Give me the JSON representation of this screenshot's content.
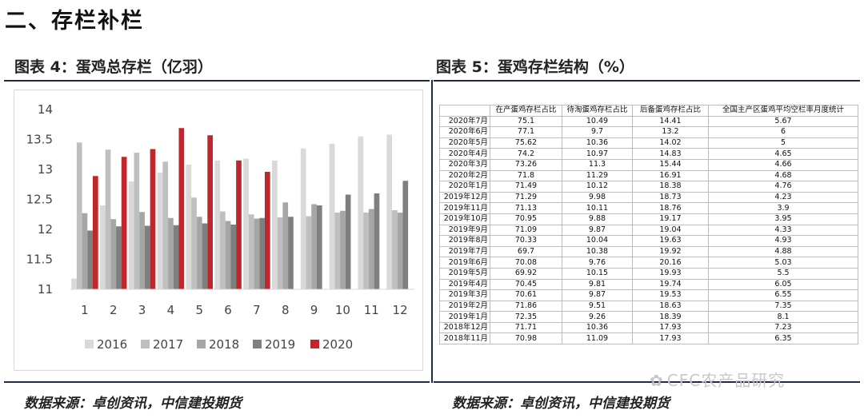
{
  "section_title": "二、存栏补栏",
  "left_figure": {
    "title": "图表 4：蛋鸡总存栏（亿羽）",
    "source": "数据来源：卓创资讯，中信建投期货"
  },
  "right_figure": {
    "title": "图表 5：蛋鸡存栏结构（%）",
    "source": "数据来源：卓创资讯，中信建投期货",
    "watermark": "CFC农产品研究",
    "table": {
      "headers": [
        "",
        "在产蛋鸡存栏占比",
        "待淘蛋鸡存栏占比",
        "后备蛋鸡存栏占比",
        "全国主产区蛋鸡平均空栏率月度统计"
      ],
      "rows": [
        [
          "2020年7月",
          "75.1",
          "10.49",
          "14.41",
          "5.67"
        ],
        [
          "2020年6月",
          "77.1",
          "9.7",
          "13.2",
          "6"
        ],
        [
          "2020年5月",
          "75.62",
          "10.36",
          "14.02",
          "5"
        ],
        [
          "2020年4月",
          "74.2",
          "10.97",
          "14.83",
          "4.65"
        ],
        [
          "2020年3月",
          "73.26",
          "11.3",
          "15.44",
          "4.66"
        ],
        [
          "2020年2月",
          "71.8",
          "11.29",
          "16.91",
          "4.68"
        ],
        [
          "2020年1月",
          "71.49",
          "10.12",
          "18.38",
          "4.76"
        ],
        [
          "2019年12月",
          "71.29",
          "9.98",
          "18.73",
          "4.23"
        ],
        [
          "2019年11月",
          "71.13",
          "10.11",
          "18.76",
          "3.9"
        ],
        [
          "2019年10月",
          "70.95",
          "9.88",
          "19.17",
          "3.95"
        ],
        [
          "2019年9月",
          "71.09",
          "9.87",
          "19.04",
          "4.33"
        ],
        [
          "2019年8月",
          "70.33",
          "10.04",
          "19.63",
          "4.93"
        ],
        [
          "2019年7月",
          "69.7",
          "10.38",
          "19.92",
          "4.88"
        ],
        [
          "2019年6月",
          "70.08",
          "9.76",
          "20.16",
          "5.03"
        ],
        [
          "2019年5月",
          "69.92",
          "10.15",
          "19.93",
          "5.5"
        ],
        [
          "2019年4月",
          "70.45",
          "9.81",
          "19.74",
          "6.05"
        ],
        [
          "2019年3月",
          "70.61",
          "9.87",
          "19.53",
          "6.55"
        ],
        [
          "2019年2月",
          "71.86",
          "9.51",
          "18.63",
          "7.35"
        ],
        [
          "2019年1月",
          "72.35",
          "9.26",
          "18.39",
          "8.1"
        ],
        [
          "2018年12月",
          "71.71",
          "10.36",
          "17.93",
          "7.23"
        ],
        [
          "2018年11月",
          "70.98",
          "11.09",
          "17.93",
          "6.35"
        ]
      ]
    }
  },
  "chart_data": {
    "type": "bar",
    "categories": [
      "1",
      "2",
      "3",
      "4",
      "5",
      "6",
      "7",
      "8",
      "9",
      "10",
      "11",
      "12"
    ],
    "ylim": [
      11,
      14
    ],
    "yticks": [
      "11",
      "11.5",
      "12",
      "12.5",
      "13",
      "13.5",
      "14"
    ],
    "grid": false,
    "legend_position": "bottom",
    "series": [
      {
        "name": "2016",
        "color": "#d9d9d9",
        "values": [
          11.18,
          12.4,
          12.8,
          12.95,
          13.08,
          13.15,
          13.18,
          13.15,
          13.35,
          13.43,
          13.55,
          13.58
        ]
      },
      {
        "name": "2017",
        "color": "#bfbfbf",
        "values": [
          13.45,
          13.33,
          13.28,
          13.13,
          12.53,
          12.3,
          12.25,
          12.2,
          12.22,
          12.28,
          12.28,
          12.32
        ]
      },
      {
        "name": "2018",
        "color": "#a6a6a6",
        "values": [
          12.27,
          12.17,
          12.29,
          12.19,
          12.21,
          12.14,
          12.18,
          12.45,
          12.42,
          12.31,
          12.34,
          12.28
        ]
      },
      {
        "name": "2019",
        "color": "#7f7f7f",
        "values": [
          11.98,
          12.05,
          12.06,
          12.07,
          12.1,
          12.08,
          12.19,
          12.21,
          12.4,
          12.58,
          12.6,
          12.81
        ]
      },
      {
        "name": "2020",
        "color": "#c0272d",
        "values": [
          12.89,
          13.21,
          13.34,
          13.69,
          13.57,
          13.15,
          12.96,
          null,
          null,
          null,
          null,
          null
        ]
      }
    ]
  }
}
